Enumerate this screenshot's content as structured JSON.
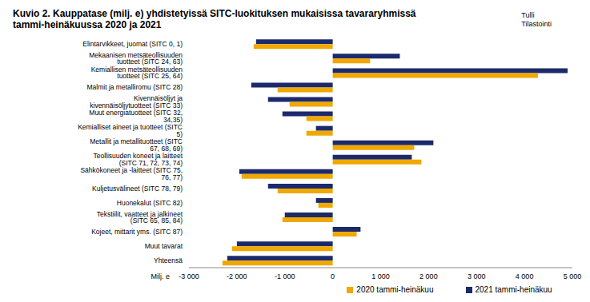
{
  "chart_data": {
    "type": "bar",
    "orientation": "horizontal",
    "title": "Kuvio 2. Kauppatase (milj. e) yhdistetyissä SITC-luokituksen mukaisissa tavararyhmissä tammi-heinäkuussa 2020 ja 2021",
    "annotations": [
      "Tulli",
      "Tilastointi"
    ],
    "x_label": "Milj. e",
    "categories": [
      "Elintarvikkeet, juomat (SITC 0, 1)",
      "Mekaanisen metsäteollisuuden tuotteet (SITC 24, 63)",
      "Kemiallisen metsäteollisuuden tuotteet (SITC 25, 64)",
      "Malmit ja metalliromu (SITC 28)",
      "Kivennäisöljyt ja kivennäisöljytuotteet (SITC 33)",
      "Muut energiatuotteet (SITC 32, 34,35)",
      "Kemialliset aineet ja tuotteet (SITC 5)",
      "Metallit ja metallituotteet (SITC 67, 68, 69)",
      "Teollisuuden koneet ja laitteet (SITC 71, 72, 73, 74)",
      "Sähkökoneet ja -laitteet (SITC 75, 76, 77)",
      "Kuljetusvälineet (SITC 78, 79)",
      "Huonekalut (SITC 82)",
      "Tekstiilit, vaatteet ja jalkineet (SITC 65, 85, 84)",
      "Kojeet, mittarit yms. (SITC 87)",
      "Muut tavarat",
      "Yhteensä"
    ],
    "series": [
      {
        "name": "2021 tammi-heinäkuu",
        "color": "#1b2a6b",
        "values": [
          -1600,
          1400,
          4900,
          -1700,
          -1350,
          -1050,
          -350,
          2100,
          1650,
          -1950,
          -1350,
          -350,
          -1000,
          580,
          -2000,
          -2200
        ]
      },
      {
        "name": "2020 tammi-heinäkuu",
        "color": "#f0a800",
        "values": [
          -1650,
          780,
          4280,
          -1150,
          -900,
          -550,
          -550,
          1700,
          1850,
          -1900,
          -1150,
          -300,
          -1050,
          500,
          -2100,
          -2300
        ]
      }
    ],
    "xlim": [
      -3000,
      5000
    ],
    "xticks": [
      {
        "value": -3000,
        "label": "-3 000"
      },
      {
        "value": -2000,
        "label": "-2 000"
      },
      {
        "value": -1000,
        "label": "-1 000"
      },
      0,
      {
        "value": 1000,
        "label": "1 000"
      },
      {
        "value": 2000,
        "label": "2 000"
      },
      {
        "value": 3000,
        "label": "3 000"
      },
      {
        "value": 4000,
        "label": "4 000"
      },
      {
        "value": 5000,
        "label": "5 000"
      }
    ],
    "grid": false,
    "legend": "bottom"
  }
}
